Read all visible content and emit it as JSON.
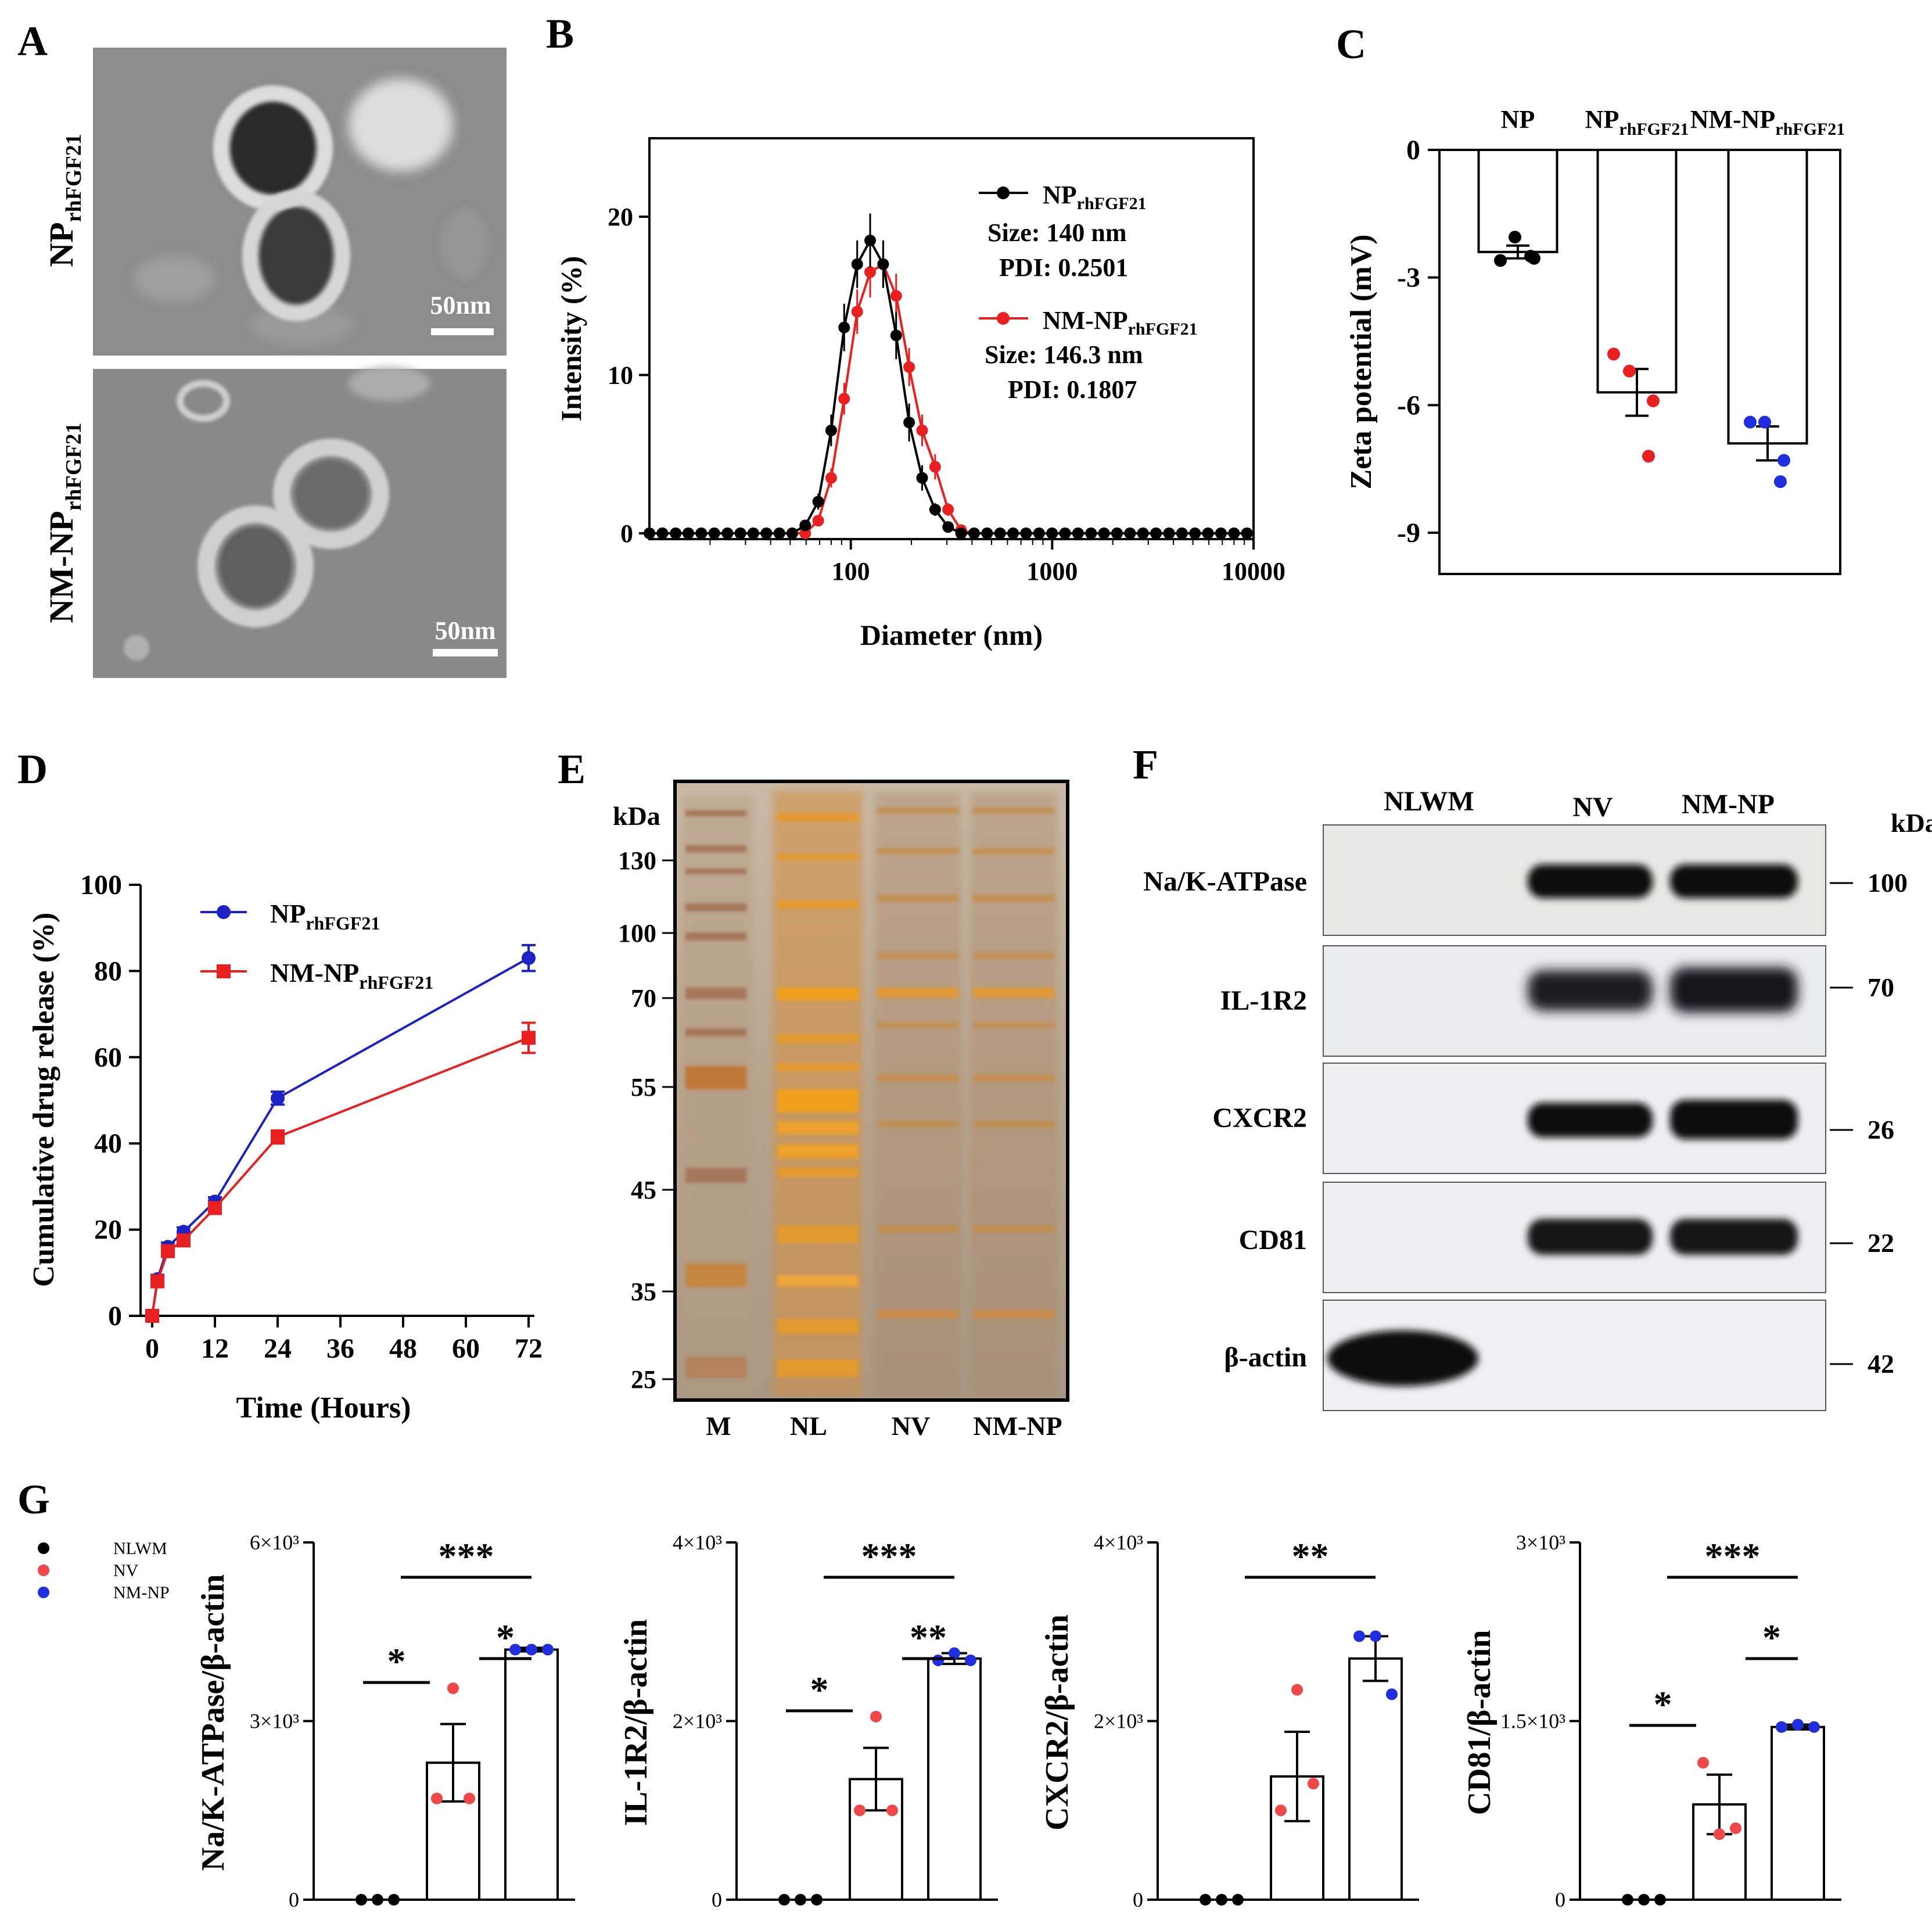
{
  "panels": {
    "A": "A",
    "B": "B",
    "C": "C",
    "D": "D",
    "E": "E",
    "F": "F",
    "G": "G"
  },
  "panelA": {
    "top_label_main": "NP",
    "top_label_sub": "rhFGF21",
    "bottom_label_main": "NM-NP",
    "bottom_label_sub": "rhFGF21",
    "scale_top": "50nm",
    "scale_bottom": "50nm"
  },
  "panelB": {
    "ylabel": "Intensity (%)",
    "xlabel": "Diameter (nm)",
    "yticks": [
      "0",
      "10",
      "20"
    ],
    "xticks": [
      "100",
      "1000",
      "10000"
    ],
    "legend": {
      "np_main": "NP",
      "np_sub": "rhFGF21",
      "np_size": "Size: 140 nm",
      "np_pdi": "PDI: 0.2501",
      "nm_main": "NM-NP",
      "nm_sub": "rhFGF21",
      "nm_size": "Size: 146.3 nm",
      "nm_pdi": "PDI: 0.1807"
    },
    "colors": {
      "np": "#000000",
      "nm": "#e8201f"
    }
  },
  "panelC": {
    "ylabel": "Zeta potential (mV)",
    "yticks": [
      "0",
      "-3",
      "-6",
      "-9"
    ],
    "groups": [
      {
        "main": "NP",
        "sub": ""
      },
      {
        "main": "NP",
        "sub": "rhFGF21"
      },
      {
        "main": "NM-NP",
        "sub": "rhFGF21"
      }
    ]
  },
  "panelD": {
    "ylabel": "Cumulative drug release (%)",
    "xlabel": "Time (Hours)",
    "yticks": [
      "0",
      "20",
      "40",
      "60",
      "80",
      "100"
    ],
    "xticks": [
      "0",
      "12",
      "24",
      "36",
      "48",
      "60",
      "72"
    ],
    "legend": {
      "np_main": "NP",
      "np_sub": "rhFGF21",
      "nm_main": "NM-NP",
      "nm_sub": "rhFGF21"
    },
    "colors": {
      "np": "#1d22c4",
      "nm": "#e8201f"
    }
  },
  "panelE": {
    "kda": "kDa",
    "markers": [
      "130",
      "100",
      "70",
      "55",
      "45",
      "35",
      "25"
    ],
    "lanes": [
      "M",
      "NL",
      "NV",
      "NM-NP"
    ]
  },
  "panelF": {
    "lanes": [
      "NLWM",
      "NV",
      "NM-NP"
    ],
    "kda": "kDa",
    "proteins": [
      {
        "name": "Na/K-ATPase",
        "kda": "100"
      },
      {
        "name": "IL-1R2",
        "kda": "70"
      },
      {
        "name": "CXCR2",
        "kda": "26"
      },
      {
        "name": "CD81",
        "kda": "22"
      },
      {
        "name": "β-actin",
        "kda": "42"
      }
    ]
  },
  "panelG": {
    "legend": [
      "NLWM",
      "NV",
      "NM-NP"
    ],
    "legend_colors": [
      "#000000",
      "#f04848",
      "#1f2fe0"
    ],
    "plots": [
      {
        "ylabel": "Na/K-ATPase/β-actin",
        "ytick_top": "6×10³",
        "ytick_mid": "3×10³",
        "ytick_zero": "0",
        "sig_long": "***",
        "sig_low": "*",
        "sig_high": "*"
      },
      {
        "ylabel": "IL-1R2/β-actin",
        "ytick_top": "4×10³",
        "ytick_mid": "2×10³",
        "ytick_zero": "0",
        "sig_long": "***",
        "sig_low": "*",
        "sig_high": "**"
      },
      {
        "ylabel": "CXCR2/β-actin",
        "ytick_top": "4×10³",
        "ytick_mid": "2×10³",
        "ytick_zero": "0",
        "sig_long": "**",
        "sig_low": "",
        "sig_high": ""
      },
      {
        "ylabel": "CD81/β-actin",
        "ytick_top": "3×10³",
        "ytick_mid": "1.5×10³",
        "ytick_zero": "0",
        "sig_long": "***",
        "sig_low": "*",
        "sig_high": "*"
      }
    ]
  },
  "chart_data": [
    {
      "panel": "B",
      "type": "line",
      "title": "",
      "xlabel": "Diameter (nm)",
      "ylabel": "Intensity (%)",
      "xscale": "log",
      "xlim": [
        10,
        10000
      ],
      "ylim": [
        0,
        25
      ],
      "x": [
        10,
        11.6,
        13.5,
        15.6,
        18.1,
        21,
        24.4,
        28.3,
        32.8,
        38.1,
        44.2,
        51.2,
        59.4,
        68.9,
        79.9,
        92.7,
        107.6,
        124.8,
        144.8,
        168,
        194.9,
        226.1,
        262.3,
        304.3,
        353,
        409.6,
        475.2,
        551.3,
        639.6,
        742,
        860.9,
        998.8,
        1158.8,
        1344.4,
        1559.7,
        1809.5,
        2099.4,
        2435.7,
        2825.8,
        3278.4,
        3803.5,
        4412.7,
        5119.5,
        5939.5,
        6890.8,
        7994.5,
        9275
      ],
      "series": [
        {
          "name": "NPrhFGF21",
          "color": "#000000",
          "values": [
            0,
            0,
            0,
            0,
            0,
            0,
            0,
            0,
            0,
            0,
            0,
            0,
            0.5,
            2,
            6.5,
            13,
            17,
            18.5,
            17,
            12.5,
            7,
            3.5,
            1.5,
            0.4,
            0,
            0,
            0,
            0,
            0,
            0,
            0,
            0,
            0,
            0,
            0,
            0,
            0,
            0,
            0,
            0,
            0,
            0,
            0,
            0,
            0,
            0,
            0
          ],
          "errors": [
            0,
            0,
            0,
            0,
            0,
            0,
            0,
            0,
            0,
            0,
            0,
            0,
            0.2,
            0.5,
            1,
            1.5,
            1.5,
            1.7,
            1.5,
            1.5,
            1.2,
            0.8,
            0.4,
            0.2,
            0,
            0,
            0,
            0,
            0,
            0,
            0,
            0,
            0,
            0,
            0,
            0,
            0,
            0,
            0,
            0,
            0,
            0,
            0,
            0,
            0,
            0,
            0
          ]
        },
        {
          "name": "NM-NPrhFGF21",
          "color": "#e8201f",
          "values": [
            0,
            0,
            0,
            0,
            0,
            0,
            0,
            0,
            0,
            0,
            0,
            0,
            0,
            0.8,
            3.5,
            8.5,
            14,
            16.5,
            17,
            15,
            10.5,
            6.5,
            4.2,
            1.5,
            0.2,
            0,
            0,
            0,
            0,
            0,
            0,
            0,
            0,
            0,
            0,
            0,
            0,
            0,
            0,
            0,
            0,
            0,
            0,
            0,
            0,
            0,
            0
          ],
          "errors": [
            0,
            0,
            0,
            0,
            0,
            0,
            0,
            0,
            0,
            0,
            0,
            0,
            0,
            0.3,
            0.6,
            1,
            1.4,
            1.6,
            1.5,
            1.4,
            1.2,
            1,
            0.8,
            0.4,
            0.1,
            0,
            0,
            0,
            0,
            0,
            0,
            0,
            0,
            0,
            0,
            0,
            0,
            0,
            0,
            0,
            0,
            0,
            0,
            0,
            0,
            0,
            0
          ]
        }
      ]
    },
    {
      "panel": "C",
      "type": "bar",
      "ylabel": "Zeta potential (mV)",
      "ylim": [
        -10,
        0
      ],
      "categories": [
        "NP",
        "NPrhFGF21",
        "NM-NPrhFGF21"
      ],
      "values": [
        -2.4,
        -5.7,
        -6.9
      ],
      "errors": [
        0.15,
        0.55,
        0.4
      ],
      "points": [
        [
          -2.6,
          -2.05,
          -2.55,
          -2.5
        ],
        [
          -4.8,
          -5.2,
          -5.9,
          -7.2
        ],
        [
          -6.4,
          -6.4,
          -7.3,
          -7.8
        ]
      ],
      "colors": [
        "#000000",
        "#e8201f",
        "#1f2fe0"
      ]
    },
    {
      "panel": "D",
      "type": "line",
      "xlabel": "Time (Hours)",
      "ylabel": "Cumulative drug release (%)",
      "xlim": [
        0,
        72
      ],
      "ylim": [
        0,
        100
      ],
      "x": [
        0,
        1,
        3,
        6,
        12,
        24,
        72
      ],
      "series": [
        {
          "name": "NPrhFGF21",
          "color": "#1d22c4",
          "values": [
            0,
            8.5,
            16,
            19.5,
            26.5,
            50.5,
            83
          ],
          "errors": [
            0,
            1,
            1,
            1,
            1,
            1.5,
            3
          ]
        },
        {
          "name": "NM-NPrhFGF21",
          "color": "#e8201f",
          "values": [
            0,
            8,
            15,
            17.5,
            25,
            41.5,
            64.5
          ],
          "errors": [
            0,
            1,
            1,
            1,
            1,
            1.5,
            3.5
          ]
        }
      ]
    },
    {
      "panel": "G",
      "type": "bar",
      "categories": [
        "NLWM",
        "NV",
        "NM-NP"
      ],
      "subplots": [
        {
          "ylabel": "Na/K-ATPase/β-actin",
          "ylim": [
            0,
            6000
          ],
          "values": [
            0,
            2300,
            4200
          ],
          "errors": [
            0,
            650,
            30
          ],
          "points": [
            [
              0,
              0,
              0
            ],
            [
              1700,
              3550,
              1700
            ],
            [
              4200,
              4200,
              4200
            ]
          ]
        },
        {
          "ylabel": "IL-1R2/β-actin",
          "ylim": [
            0,
            4000
          ],
          "values": [
            0,
            1350,
            2700
          ],
          "errors": [
            0,
            350,
            60
          ],
          "points": [
            [
              0,
              0,
              0
            ],
            [
              1000,
              2050,
              1000
            ],
            [
              2680,
              2760,
              2680
            ]
          ]
        },
        {
          "ylabel": "CXCR2/β-actin",
          "ylim": [
            0,
            4000
          ],
          "values": [
            0,
            1380,
            2700
          ],
          "errors": [
            0,
            500,
            250
          ],
          "points": [
            [
              0,
              0,
              0
            ],
            [
              1000,
              2350,
              1300
            ],
            [
              2950,
              2950,
              2300
            ]
          ]
        },
        {
          "ylabel": "CD81/β-actin",
          "ylim": [
            0,
            3000
          ],
          "values": [
            0,
            800,
            1450
          ],
          "errors": [
            0,
            250,
            20
          ],
          "points": [
            [
              0,
              0,
              0
            ],
            [
              1150,
              550,
              600
            ],
            [
              1450,
              1470,
              1450
            ]
          ]
        }
      ]
    }
  ]
}
